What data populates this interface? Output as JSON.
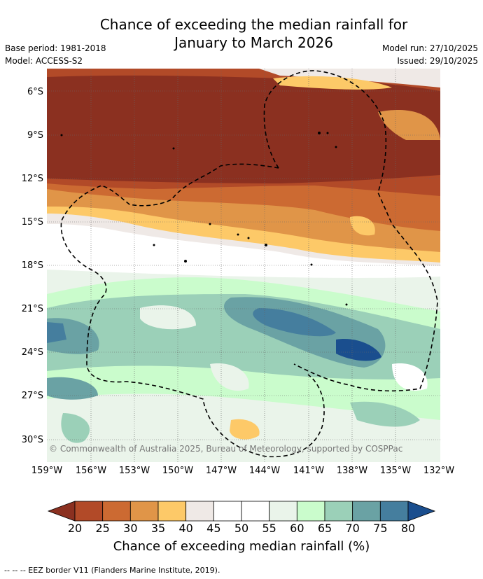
{
  "title_line1": "Chance of exceeding the median rainfall for",
  "title_line2": "January to March 2026",
  "base_period": "Base period: 1981-2018",
  "model": "Model: ACCESS-S2",
  "model_run": "Model run: 27/10/2025",
  "issued": "Issued: 29/10/2025",
  "lat_labels": [
    "6°S",
    "9°S",
    "12°S",
    "15°S",
    "18°S",
    "21°S",
    "24°S",
    "27°S",
    "30°S"
  ],
  "lon_labels": [
    "159°W",
    "156°W",
    "153°W",
    "150°W",
    "147°W",
    "144°W",
    "141°W",
    "138°W",
    "135°W",
    "132°W"
  ],
  "copyright": "© Commonwealth of Australia 2025, Bureau of Meteorology, supported by COSPPac",
  "colorbar": {
    "ticks": [
      "20",
      "25",
      "30",
      "35",
      "40",
      "45",
      "50",
      "55",
      "60",
      "65",
      "70",
      "75",
      "80"
    ],
    "colors": [
      "#8b3020",
      "#b24a28",
      "#cc6a32",
      "#e09548",
      "#fdc968",
      "#efe9e6",
      "#ffffff",
      "#ffffff",
      "#eaf4ea",
      "#cafccc",
      "#9bd0b8",
      "#6aa2a4",
      "#457e9e",
      "#1a4e8e"
    ],
    "label": "Chance of exceeding median rainfall (%)"
  },
  "footer": "--  --  -- EEZ border V11 (Flanders Marine Institute, 2019)."
}
